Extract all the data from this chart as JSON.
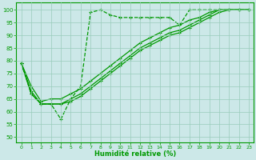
{
  "xlabel": "Humidité relative (%)",
  "xlim": [
    -0.5,
    23.5
  ],
  "ylim": [
    48,
    103
  ],
  "yticks": [
    50,
    55,
    60,
    65,
    70,
    75,
    80,
    85,
    90,
    95,
    100
  ],
  "xticks": [
    0,
    1,
    2,
    3,
    4,
    5,
    6,
    7,
    8,
    9,
    10,
    11,
    12,
    13,
    14,
    15,
    16,
    17,
    18,
    19,
    20,
    21,
    22,
    23
  ],
  "bg_color": "#cce8e8",
  "grid_color": "#99ccbb",
  "line_color": "#009900",
  "lines": [
    {
      "x": [
        0,
        1,
        2,
        3,
        4,
        5,
        6,
        7,
        8,
        9,
        10,
        11,
        12,
        13,
        14,
        15,
        16,
        17,
        18,
        19,
        20,
        21,
        22,
        23
      ],
      "y": [
        79,
        67,
        63,
        63,
        57,
        65,
        70,
        99,
        100,
        98,
        97,
        97,
        97,
        97,
        97,
        97,
        94,
        100,
        100,
        100,
        100,
        100,
        100,
        100
      ],
      "marker": "+",
      "ls": "--",
      "lw": 0.9
    },
    {
      "x": [
        0,
        1,
        2,
        3,
        4,
        5,
        6,
        7,
        8,
        9,
        10,
        11,
        12,
        13,
        14,
        15,
        16,
        17,
        18,
        19,
        20,
        21,
        22,
        23
      ],
      "y": [
        79,
        70,
        64,
        65,
        65,
        67,
        69,
        72,
        75,
        78,
        81,
        84,
        87,
        89,
        91,
        93,
        94,
        96,
        97,
        99,
        100,
        100,
        100,
        100
      ],
      "marker": "+",
      "ls": "-",
      "lw": 0.9
    },
    {
      "x": [
        0,
        1,
        2,
        3,
        4,
        5,
        6,
        7,
        8,
        9,
        10,
        11,
        12,
        13,
        14,
        15,
        16,
        17,
        18,
        19,
        20,
        21,
        22,
        23
      ],
      "y": [
        79,
        68,
        63,
        63,
        63,
        65,
        67,
        70,
        73,
        76,
        79,
        82,
        85,
        87,
        89,
        91,
        92,
        94,
        96,
        98,
        100,
        100,
        100,
        100
      ],
      "marker": "+",
      "ls": "-",
      "lw": 0.9
    },
    {
      "x": [
        0,
        1,
        2,
        3,
        4,
        5,
        6,
        7,
        8,
        9,
        10,
        11,
        12,
        13,
        14,
        15,
        16,
        17,
        18,
        19,
        20,
        21,
        22,
        23
      ],
      "y": [
        79,
        67,
        63,
        63,
        63,
        64,
        66,
        69,
        72,
        75,
        78,
        81,
        84,
        86,
        88,
        90,
        91,
        93,
        95,
        97,
        99,
        100,
        100,
        100
      ],
      "marker": "+",
      "ls": "-",
      "lw": 0.9
    }
  ]
}
